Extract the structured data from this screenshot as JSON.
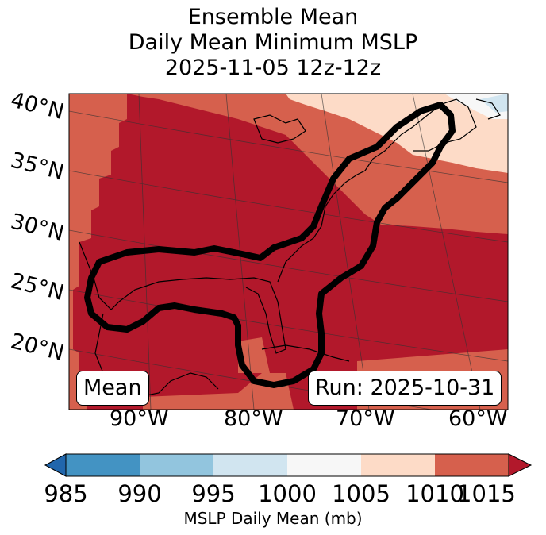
{
  "title": {
    "line1": "Ensemble Mean",
    "line2": "Daily Mean Minimum MSLP",
    "line3": "2025-11-05 12z-12z"
  },
  "map": {
    "region": "Gulf of Mexico / US East Coast / Western Atlantic",
    "lat_labels": [
      "40°N",
      "35°N",
      "30°N",
      "25°N",
      "20°N"
    ],
    "lon_labels": [
      "90°W",
      "80°W",
      "70°W",
      "60°W"
    ],
    "mean_box": "Mean",
    "run_box": "Run: 2025-10-31"
  },
  "colorbar": {
    "ticks": [
      "985",
      "990",
      "995",
      "1000",
      "1005",
      "1010",
      "1015"
    ],
    "bins": [
      {
        "range": "<985",
        "color": "#2166ac"
      },
      {
        "range": "985-990",
        "color": "#4393c3"
      },
      {
        "range": "990-995",
        "color": "#92c5de"
      },
      {
        "range": "995-1000",
        "color": "#d1e5f0"
      },
      {
        "range": "1000-1005",
        "color": "#f7f7f7"
      },
      {
        "range": "1005-1010",
        "color": "#fddbc7"
      },
      {
        "range": "1010-1015",
        "color": "#d6604d"
      },
      {
        "range": ">1015",
        "color": "#b2182b"
      }
    ],
    "label": "MSLP Daily Mean (mb)"
  }
}
